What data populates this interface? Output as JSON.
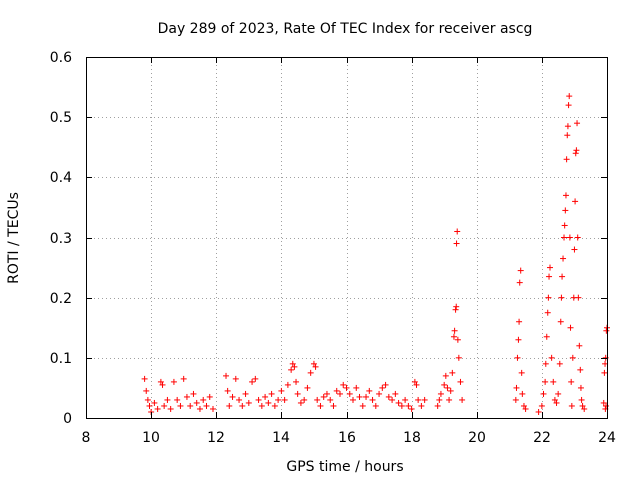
{
  "chart_data": {
    "type": "scatter",
    "title": "Day 289 of 2023, Rate Of TEC Index for receiver ascg",
    "xlabel": "GPS time / hours",
    "ylabel": "ROTI / TECUs",
    "xlim": [
      8,
      24
    ],
    "ylim": [
      0,
      0.6
    ],
    "xticks": [
      8,
      10,
      12,
      14,
      16,
      18,
      20,
      22,
      24
    ],
    "yticks": [
      0,
      0.1,
      0.2,
      0.3,
      0.4,
      0.5,
      0.6
    ],
    "xtick_labels": [
      "8",
      "10",
      "12",
      "14",
      "16",
      "18",
      "20",
      "22",
      "24"
    ],
    "ytick_labels": [
      "0",
      "0.1",
      "0.2",
      "0.3",
      "0.4",
      "0.5",
      "0.6"
    ],
    "grid": true,
    "marker": "+",
    "color": "#ff0000",
    "series": [
      {
        "name": "ROTI",
        "points": [
          [
            9.8,
            0.065
          ],
          [
            9.85,
            0.045
          ],
          [
            9.9,
            0.03
          ],
          [
            9.95,
            0.02
          ],
          [
            10.0,
            0.01
          ],
          [
            10.1,
            0.025
          ],
          [
            10.2,
            0.015
          ],
          [
            10.3,
            0.06
          ],
          [
            10.35,
            0.055
          ],
          [
            10.4,
            0.02
          ],
          [
            10.5,
            0.03
          ],
          [
            10.6,
            0.015
          ],
          [
            10.7,
            0.06
          ],
          [
            10.8,
            0.03
          ],
          [
            10.9,
            0.02
          ],
          [
            11.0,
            0.065
          ],
          [
            11.1,
            0.035
          ],
          [
            11.2,
            0.02
          ],
          [
            11.3,
            0.04
          ],
          [
            11.4,
            0.025
          ],
          [
            11.5,
            0.015
          ],
          [
            11.6,
            0.03
          ],
          [
            11.7,
            0.02
          ],
          [
            11.8,
            0.035
          ],
          [
            11.9,
            0.015
          ],
          [
            12.3,
            0.07
          ],
          [
            12.35,
            0.045
          ],
          [
            12.4,
            0.02
          ],
          [
            12.5,
            0.035
          ],
          [
            12.6,
            0.065
          ],
          [
            12.7,
            0.03
          ],
          [
            12.8,
            0.02
          ],
          [
            12.9,
            0.04
          ],
          [
            13.0,
            0.025
          ],
          [
            13.1,
            0.06
          ],
          [
            13.2,
            0.065
          ],
          [
            13.3,
            0.03
          ],
          [
            13.4,
            0.02
          ],
          [
            13.5,
            0.035
          ],
          [
            13.6,
            0.025
          ],
          [
            13.7,
            0.04
          ],
          [
            13.8,
            0.02
          ],
          [
            13.9,
            0.03
          ],
          [
            14.0,
            0.045
          ],
          [
            14.1,
            0.03
          ],
          [
            14.2,
            0.055
          ],
          [
            14.3,
            0.08
          ],
          [
            14.35,
            0.09
          ],
          [
            14.4,
            0.085
          ],
          [
            14.45,
            0.06
          ],
          [
            14.5,
            0.04
          ],
          [
            14.6,
            0.025
          ],
          [
            14.7,
            0.03
          ],
          [
            14.8,
            0.05
          ],
          [
            14.9,
            0.075
          ],
          [
            15.0,
            0.09
          ],
          [
            15.05,
            0.085
          ],
          [
            15.1,
            0.03
          ],
          [
            15.2,
            0.02
          ],
          [
            15.3,
            0.035
          ],
          [
            15.4,
            0.04
          ],
          [
            15.5,
            0.03
          ],
          [
            15.6,
            0.02
          ],
          [
            15.7,
            0.045
          ],
          [
            15.8,
            0.04
          ],
          [
            15.9,
            0.055
          ],
          [
            16.0,
            0.05
          ],
          [
            16.1,
            0.04
          ],
          [
            16.2,
            0.03
          ],
          [
            16.3,
            0.05
          ],
          [
            16.4,
            0.035
          ],
          [
            16.5,
            0.02
          ],
          [
            16.6,
            0.035
          ],
          [
            16.7,
            0.045
          ],
          [
            16.8,
            0.03
          ],
          [
            16.9,
            0.02
          ],
          [
            17.0,
            0.04
          ],
          [
            17.1,
            0.05
          ],
          [
            17.2,
            0.055
          ],
          [
            17.3,
            0.035
          ],
          [
            17.4,
            0.03
          ],
          [
            17.5,
            0.04
          ],
          [
            17.6,
            0.025
          ],
          [
            17.7,
            0.02
          ],
          [
            17.8,
            0.03
          ],
          [
            17.9,
            0.02
          ],
          [
            18.0,
            0.015
          ],
          [
            18.1,
            0.06
          ],
          [
            18.15,
            0.055
          ],
          [
            18.2,
            0.03
          ],
          [
            18.3,
            0.02
          ],
          [
            18.4,
            0.03
          ],
          [
            18.8,
            0.02
          ],
          [
            18.85,
            0.03
          ],
          [
            18.9,
            0.04
          ],
          [
            19.0,
            0.055
          ],
          [
            19.05,
            0.07
          ],
          [
            19.1,
            0.05
          ],
          [
            19.15,
            0.03
          ],
          [
            19.2,
            0.045
          ],
          [
            19.25,
            0.075
          ],
          [
            19.3,
            0.135
          ],
          [
            19.32,
            0.145
          ],
          [
            19.35,
            0.18
          ],
          [
            19.37,
            0.185
          ],
          [
            19.38,
            0.29
          ],
          [
            19.4,
            0.31
          ],
          [
            19.42,
            0.13
          ],
          [
            19.45,
            0.1
          ],
          [
            19.5,
            0.06
          ],
          [
            19.55,
            0.03
          ],
          [
            21.2,
            0.03
          ],
          [
            21.22,
            0.05
          ],
          [
            21.25,
            0.1
          ],
          [
            21.28,
            0.13
          ],
          [
            21.3,
            0.16
          ],
          [
            21.32,
            0.225
          ],
          [
            21.35,
            0.245
          ],
          [
            21.38,
            0.075
          ],
          [
            21.4,
            0.04
          ],
          [
            21.45,
            0.02
          ],
          [
            21.5,
            0.015
          ],
          [
            21.9,
            0.01
          ],
          [
            22.0,
            0.02
          ],
          [
            22.05,
            0.04
          ],
          [
            22.1,
            0.06
          ],
          [
            22.12,
            0.09
          ],
          [
            22.15,
            0.135
          ],
          [
            22.18,
            0.175
          ],
          [
            22.2,
            0.2
          ],
          [
            22.22,
            0.235
          ],
          [
            22.25,
            0.25
          ],
          [
            22.3,
            0.1
          ],
          [
            22.35,
            0.06
          ],
          [
            22.4,
            0.03
          ],
          [
            22.45,
            0.025
          ],
          [
            22.5,
            0.04
          ],
          [
            22.55,
            0.09
          ],
          [
            22.58,
            0.16
          ],
          [
            22.6,
            0.2
          ],
          [
            22.62,
            0.235
          ],
          [
            22.65,
            0.265
          ],
          [
            22.68,
            0.3
          ],
          [
            22.7,
            0.32
          ],
          [
            22.72,
            0.345
          ],
          [
            22.74,
            0.37
          ],
          [
            22.76,
            0.43
          ],
          [
            22.78,
            0.47
          ],
          [
            22.8,
            0.485
          ],
          [
            22.82,
            0.52
          ],
          [
            22.84,
            0.535
          ],
          [
            22.86,
            0.3
          ],
          [
            22.88,
            0.15
          ],
          [
            22.9,
            0.06
          ],
          [
            22.92,
            0.02
          ],
          [
            22.95,
            0.1
          ],
          [
            22.98,
            0.2
          ],
          [
            23.0,
            0.28
          ],
          [
            23.02,
            0.36
          ],
          [
            23.04,
            0.44
          ],
          [
            23.06,
            0.445
          ],
          [
            23.08,
            0.49
          ],
          [
            23.1,
            0.3
          ],
          [
            23.12,
            0.2
          ],
          [
            23.15,
            0.12
          ],
          [
            23.18,
            0.08
          ],
          [
            23.2,
            0.05
          ],
          [
            23.22,
            0.03
          ],
          [
            23.25,
            0.02
          ],
          [
            23.3,
            0.015
          ],
          [
            23.9,
            0.025
          ],
          [
            23.92,
            0.075
          ],
          [
            23.94,
            0.09
          ],
          [
            23.96,
            0.1
          ],
          [
            23.98,
            0.145
          ],
          [
            24.0,
            0.15
          ],
          [
            23.95,
            0.015
          ],
          [
            23.97,
            0.02
          ]
        ]
      }
    ]
  }
}
